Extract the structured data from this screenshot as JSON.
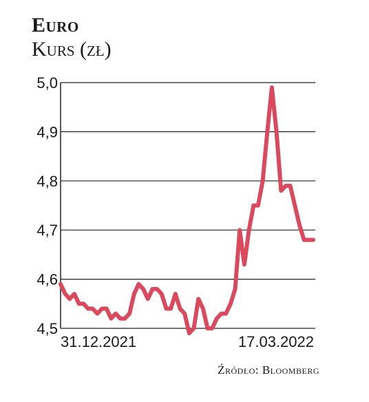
{
  "header": {
    "title": "Euro",
    "subtitle": "Kurs (zł)"
  },
  "source": "Źródło: Bloomberg",
  "chart_data": {
    "type": "line",
    "title": "Euro",
    "subtitle": "Kurs (zł)",
    "xlabel": "",
    "ylabel": "",
    "ylim": [
      4.5,
      5.0
    ],
    "yticks": [
      "5,0",
      "4,9",
      "4,8",
      "4,7",
      "4,6",
      "4,5"
    ],
    "ytick_values": [
      5.0,
      4.9,
      4.8,
      4.7,
      4.6,
      4.5
    ],
    "xtick_labels": [
      "31.12.2021",
      "17.03.2022"
    ],
    "grid": true,
    "line_color": "#d94a5f",
    "series": [
      {
        "values": [
          4.59,
          4.57,
          4.56,
          4.57,
          4.55,
          4.55,
          4.54,
          4.54,
          4.53,
          4.54,
          4.54,
          4.52,
          4.53,
          4.52,
          4.52,
          4.53,
          4.57,
          4.59,
          4.58,
          4.56,
          4.58,
          4.58,
          4.57,
          4.54,
          4.54,
          4.57,
          4.54,
          4.53,
          4.49,
          4.5,
          4.56,
          4.54,
          4.5,
          4.5,
          4.52,
          4.53,
          4.53,
          4.55,
          4.58,
          4.7,
          4.63,
          4.7,
          4.75,
          4.75,
          4.8,
          4.9,
          4.99,
          4.9,
          4.78,
          4.79,
          4.79,
          4.75,
          4.71,
          4.68,
          4.68,
          4.68
        ]
      }
    ]
  }
}
